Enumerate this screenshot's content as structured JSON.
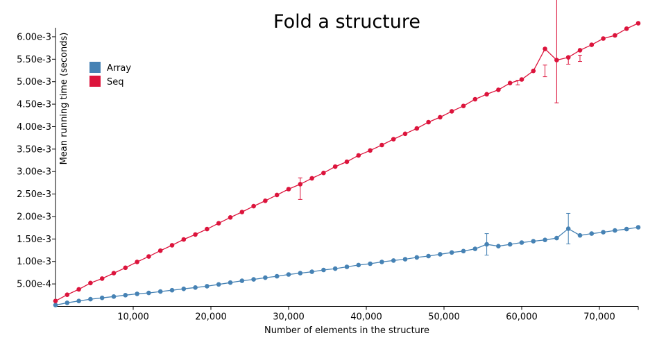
{
  "chart_data": {
    "type": "line",
    "title": "Fold a structure",
    "xlabel": "Number of elements in the structure",
    "ylabel": "Mean running time (seconds)",
    "xlim": [
      0,
      75000
    ],
    "ylim": [
      0,
      0.0062
    ],
    "grid": false,
    "legend": "top-left",
    "x_ticks": [
      {
        "value": 10000,
        "label": "10,000"
      },
      {
        "value": 20000,
        "label": "20,000"
      },
      {
        "value": 30000,
        "label": "30,000"
      },
      {
        "value": 40000,
        "label": "40,000"
      },
      {
        "value": 50000,
        "label": "50,000"
      },
      {
        "value": 60000,
        "label": "60,000"
      },
      {
        "value": 70000,
        "label": "70,000"
      }
    ],
    "y_ticks": [
      {
        "value": 0.0005,
        "label": "5.00e-4"
      },
      {
        "value": 0.001,
        "label": "1.00e-3"
      },
      {
        "value": 0.0015,
        "label": "1.50e-3"
      },
      {
        "value": 0.002,
        "label": "2.00e-3"
      },
      {
        "value": 0.0025,
        "label": "2.50e-3"
      },
      {
        "value": 0.003,
        "label": "3.00e-3"
      },
      {
        "value": 0.0035,
        "label": "3.50e-3"
      },
      {
        "value": 0.004,
        "label": "4.00e-3"
      },
      {
        "value": 0.0045,
        "label": "4.50e-3"
      },
      {
        "value": 0.005,
        "label": "5.00e-3"
      },
      {
        "value": 0.0055,
        "label": "5.50e-3"
      },
      {
        "value": 0.006,
        "label": "6.00e-3"
      }
    ],
    "x": [
      0,
      1500,
      3000,
      4500,
      6000,
      7500,
      9000,
      10500,
      12000,
      13500,
      15000,
      16500,
      18000,
      19500,
      21000,
      22500,
      24000,
      25500,
      27000,
      28500,
      30000,
      31500,
      33000,
      34500,
      36000,
      37500,
      39000,
      40500,
      42000,
      43500,
      45000,
      46500,
      48000,
      49500,
      51000,
      52500,
      54000,
      55500,
      57000,
      58500,
      60000,
      61500,
      63000,
      64500,
      66000,
      67500,
      69000,
      70500,
      72000,
      73500,
      75000
    ],
    "series": [
      {
        "name": "Array",
        "color": "#4682b4",
        "values": [
          3e-05,
          8e-05,
          0.00012,
          0.00016,
          0.00019,
          0.00022,
          0.00025,
          0.00028,
          0.0003,
          0.00033,
          0.00036,
          0.00039,
          0.00042,
          0.00045,
          0.00049,
          0.00053,
          0.00057,
          0.0006,
          0.00064,
          0.00067,
          0.00071,
          0.00074,
          0.00077,
          0.00081,
          0.00084,
          0.00088,
          0.00092,
          0.00095,
          0.00099,
          0.00102,
          0.00105,
          0.00109,
          0.00112,
          0.00116,
          0.0012,
          0.00123,
          0.00128,
          0.00138,
          0.00134,
          0.00138,
          0.00142,
          0.00145,
          0.00148,
          0.00152,
          0.00173,
          0.00158,
          0.00162,
          0.00165,
          0.00169,
          0.00172,
          0.00176
        ],
        "errors": [
          {
            "x": 55500,
            "low": 0.00114,
            "high": 0.00162
          },
          {
            "x": 66000,
            "low": 0.00139,
            "high": 0.00207
          }
        ]
      },
      {
        "name": "Seq",
        "color": "#dc143c",
        "values": [
          0.00012,
          0.00026,
          0.00038,
          0.00052,
          0.00062,
          0.00074,
          0.00086,
          0.00099,
          0.00111,
          0.00124,
          0.00136,
          0.00149,
          0.0016,
          0.00172,
          0.00185,
          0.00198,
          0.0021,
          0.00223,
          0.00235,
          0.00248,
          0.00261,
          0.00272,
          0.00285,
          0.00297,
          0.00311,
          0.00322,
          0.00336,
          0.00347,
          0.00359,
          0.00372,
          0.00384,
          0.00396,
          0.0041,
          0.00421,
          0.00434,
          0.00446,
          0.00461,
          0.00472,
          0.00482,
          0.00497,
          0.00505,
          0.00524,
          0.00573,
          0.00548,
          0.00554,
          0.0057,
          0.00582,
          0.00596,
          0.00603,
          0.00618,
          0.0063
        ],
        "errors": [
          {
            "x": 31500,
            "low": 0.00238,
            "high": 0.00286
          },
          {
            "x": 59500,
            "low": 0.00493,
            "high": 0.00503
          },
          {
            "x": 63000,
            "low": 0.00511,
            "high": 0.00537
          },
          {
            "x": 64500,
            "low": 0.00453,
            "high": 0.007
          },
          {
            "x": 66000,
            "low": 0.00539,
            "high": 0.00556
          },
          {
            "x": 67500,
            "low": 0.00545,
            "high": 0.00559
          }
        ]
      }
    ]
  }
}
